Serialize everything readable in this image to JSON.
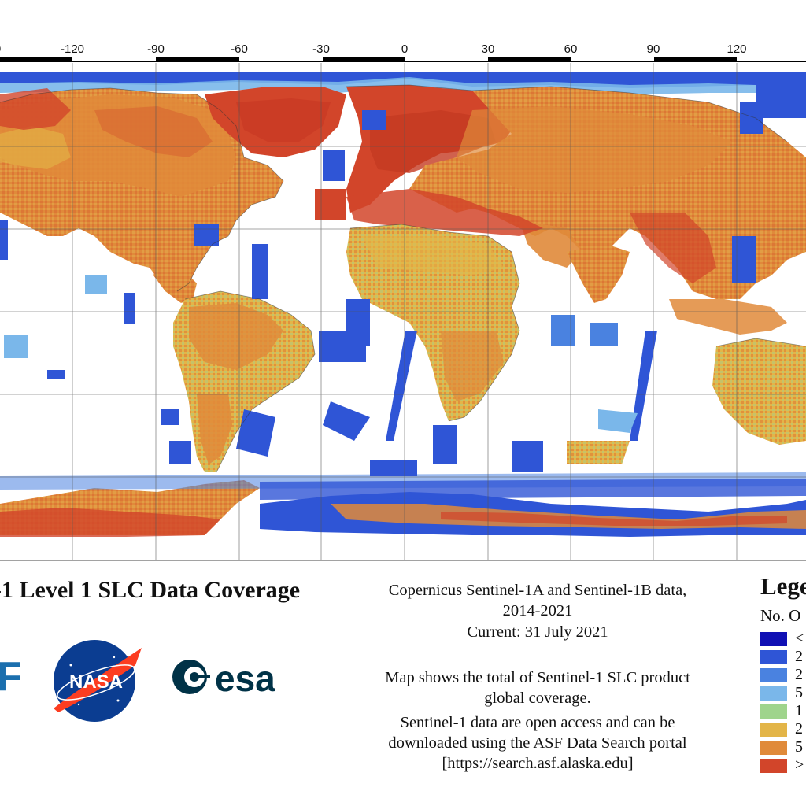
{
  "map": {
    "longitude_ticks": [
      "0",
      "-120",
      "-90",
      "-60",
      "-30",
      "0",
      "30",
      "60",
      "90",
      "120"
    ],
    "colors": {
      "ocean": "#ffffff",
      "very_low": "#1414b4",
      "low": "#2f55d6",
      "medium_low": "#4b87e2",
      "medium": "#7ab7ea",
      "medium_high": "#9fd48c",
      "high": "#e3b548",
      "very_high": "#e08a3a",
      "highest": "#d2452a"
    }
  },
  "title": "-1 Level 1 SLC Data Coverage",
  "info": {
    "line1": "Copernicus Sentinel-1A and Sentinel-1B data,",
    "line2": "2014-2021",
    "line3": "Current: 31 July 2021",
    "line4": "Map shows the total of Sentinel-1 SLC product",
    "line5": "global coverage.",
    "line6": "Sentinel-1 data are open access and can be",
    "line7": "downloaded using the ASF Data Search portal",
    "line8": "[https://search.asf.alaska.edu]"
  },
  "logos": {
    "asf": "F",
    "nasa": "NASA",
    "esa": "esa"
  },
  "legend": {
    "title": "Lege",
    "subtitle": "No. O",
    "items": [
      {
        "label": "<",
        "color": "#1010b4"
      },
      {
        "label": "2",
        "color": "#2f55d6"
      },
      {
        "label": "2",
        "color": "#4a82e0"
      },
      {
        "label": "5",
        "color": "#7ab7ea"
      },
      {
        "label": "1",
        "color": "#9fd48c"
      },
      {
        "label": "2",
        "color": "#e3b548"
      },
      {
        "label": "5",
        "color": "#e08a3a"
      },
      {
        "label": ">",
        "color": "#d2452a"
      }
    ]
  }
}
